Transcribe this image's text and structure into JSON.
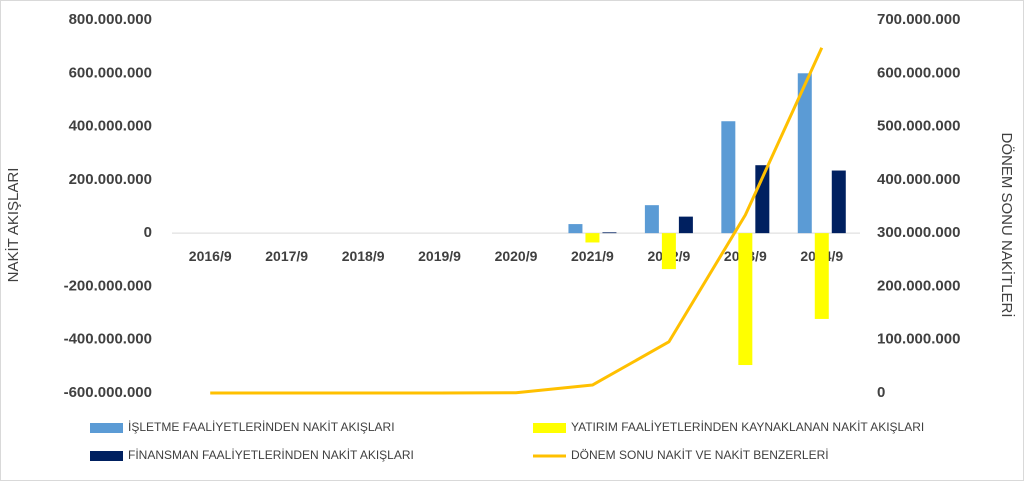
{
  "chart_data": {
    "type": "bar",
    "y_label": "NAKİT AKIŞLARI",
    "y2_label": "DÖNEM SONU NAKİTLERİ",
    "categories": [
      "2016/9",
      "2017/9",
      "2018/9",
      "2019/9",
      "2020/9",
      "2021/9",
      "2022/9",
      "2023/9",
      "2024/9"
    ],
    "series": [
      {
        "name": "İŞLETME FAALİYETLERİNDEN NAKİT AKIŞLARI",
        "color": "#5b9bd5",
        "type": "bar",
        "values": [
          0,
          0,
          0,
          0,
          0,
          34000000,
          105000000,
          420000000,
          600000000
        ]
      },
      {
        "name": "YATIRIM FAALİYETLERİNDEN KAYNAKLANAN NAKİT AKIŞLARI",
        "color": "#ffff00",
        "type": "bar",
        "values": [
          0,
          0,
          0,
          0,
          0,
          -35000000,
          -135000000,
          -495000000,
          -322000000
        ]
      },
      {
        "name": "FİNANSMAN FAALİYETLERİNDEN NAKİT AKIŞLARI",
        "color": "#002060",
        "type": "bar",
        "values": [
          0,
          0,
          0,
          0,
          0,
          3000000,
          62000000,
          255000000,
          235000000
        ]
      },
      {
        "name": "DÖNEM SONU NAKİT VE NAKİT BENZERLERİ",
        "color": "#ffc000",
        "type": "line",
        "axis": "y2",
        "values": [
          0,
          0,
          0,
          0,
          500000,
          15000000,
          96000000,
          334000000,
          648000000
        ]
      }
    ],
    "ylim": [
      -600000000,
      800000000
    ],
    "yticks": [
      {
        "value": -600000000,
        "label": "-600.000.000"
      },
      {
        "value": -400000000,
        "label": "-400.000.000"
      },
      {
        "value": -200000000,
        "label": "-200.000.000"
      },
      0,
      {
        "value": 200000000,
        "label": "200.000.000"
      },
      {
        "value": 400000000,
        "label": "400.000.000"
      },
      {
        "value": 600000000,
        "label": "600.000.000"
      },
      {
        "value": 800000000,
        "label": "800.000.000"
      }
    ],
    "y2lim": [
      0,
      700000000
    ],
    "y2ticks": [
      0,
      {
        "value": 100000000,
        "label": "100.000.000"
      },
      {
        "value": 200000000,
        "label": "200.000.000"
      },
      {
        "value": 300000000,
        "label": "300.000.000"
      },
      {
        "value": 400000000,
        "label": "400.000.000"
      },
      {
        "value": 500000000,
        "label": "500.000.000"
      },
      {
        "value": 600000000,
        "label": "600.000.000"
      },
      {
        "value": 700000000,
        "label": "700.000.000"
      }
    ],
    "grid": false,
    "legend": "bottom"
  }
}
